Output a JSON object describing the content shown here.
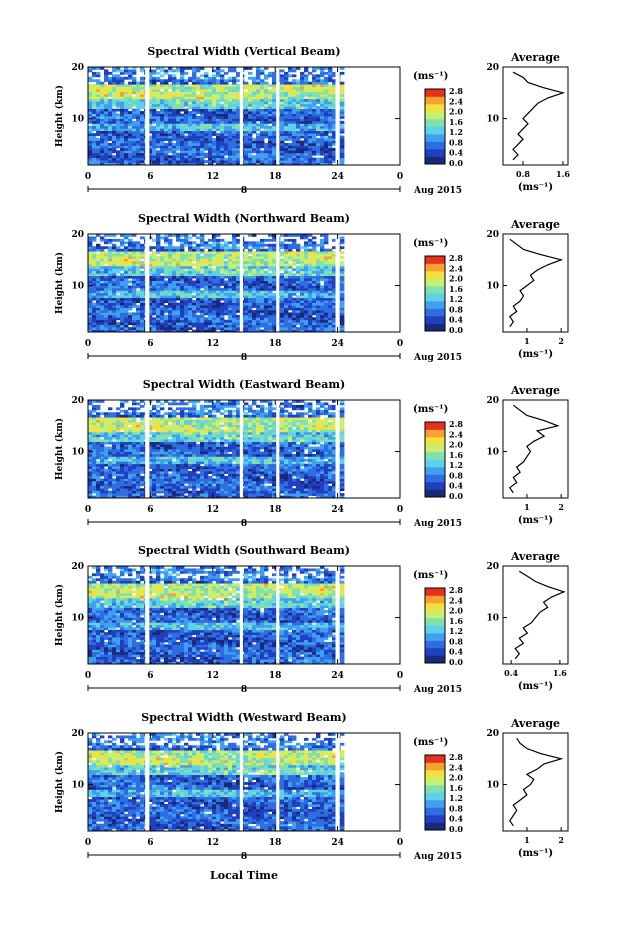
{
  "colorbar": {
    "unit": "(ms⁻¹)",
    "ticks": [
      "0.0",
      "0.4",
      "0.8",
      "1.2",
      "1.6",
      "2.0",
      "2.4",
      "2.8"
    ],
    "colors": [
      "#1a2a7a",
      "#2040c0",
      "#2f6ee0",
      "#3fa0f0",
      "#5ed0e8",
      "#7fe0b0",
      "#c8f070",
      "#f0e040",
      "#f8a030",
      "#e83020"
    ]
  },
  "date_label": "Aug 2015",
  "day_marker": "8",
  "xlabel": "Local Time",
  "chart_data": [
    {
      "type": "heatmap",
      "title": "Spectral Width (Vertical Beam)",
      "ylabel": "Height (km)",
      "x_ticks": [
        "0",
        "6",
        "12",
        "18",
        "24",
        "0"
      ],
      "y_ticks": [
        "10",
        "20"
      ],
      "xlim": [
        0,
        30
      ],
      "ylim": [
        1,
        20
      ],
      "gaps_hours": [
        [
          5.5,
          5.9
        ],
        [
          14.6,
          14.9
        ],
        [
          18.1,
          18.4
        ],
        [
          23.8,
          24.2
        ]
      ],
      "profile": {
        "title": "Average",
        "xlabel": "(ms⁻¹)",
        "x_ticks": [
          "0.8",
          "1.6"
        ],
        "xlim": [
          0.4,
          1.7
        ],
        "heights_km": [
          2,
          3,
          4,
          5,
          6,
          7,
          8,
          9,
          10,
          11,
          12,
          13,
          14,
          15,
          16,
          17,
          18,
          19
        ],
        "values": [
          0.6,
          0.7,
          0.6,
          0.7,
          0.8,
          0.7,
          0.8,
          0.9,
          0.8,
          0.9,
          1.0,
          1.1,
          1.3,
          1.6,
          1.2,
          0.9,
          0.8,
          0.6
        ]
      }
    },
    {
      "type": "heatmap",
      "title": "Spectral Width (Northward Beam)",
      "ylabel": "Height (km)",
      "x_ticks": [
        "0",
        "6",
        "12",
        "18",
        "24",
        "0"
      ],
      "y_ticks": [
        "10",
        "20"
      ],
      "xlim": [
        0,
        30
      ],
      "ylim": [
        1,
        20
      ],
      "gaps_hours": [
        [
          5.5,
          5.9
        ],
        [
          14.6,
          14.9
        ],
        [
          18.1,
          18.4
        ],
        [
          23.8,
          24.2
        ]
      ],
      "profile": {
        "title": "Average",
        "xlabel": "(ms⁻¹)",
        "x_ticks": [
          "1",
          "2"
        ],
        "xlim": [
          0.3,
          2.2
        ],
        "heights_km": [
          2,
          3,
          4,
          5,
          6,
          7,
          8,
          9,
          10,
          11,
          12,
          13,
          14,
          15,
          16,
          17,
          18,
          19
        ],
        "values": [
          0.5,
          0.6,
          0.5,
          0.7,
          0.6,
          0.8,
          0.9,
          0.8,
          1.0,
          1.2,
          1.1,
          1.3,
          1.6,
          2.0,
          1.4,
          0.9,
          0.7,
          0.5
        ]
      }
    },
    {
      "type": "heatmap",
      "title": "Spectral Width (Eastward Beam)",
      "ylabel": "Height (km)",
      "x_ticks": [
        "0",
        "6",
        "12",
        "18",
        "24",
        "0"
      ],
      "y_ticks": [
        "10",
        "20"
      ],
      "xlim": [
        0,
        30
      ],
      "ylim": [
        1,
        20
      ],
      "gaps_hours": [
        [
          5.5,
          5.9
        ],
        [
          14.6,
          14.9
        ],
        [
          18.1,
          18.4
        ],
        [
          23.8,
          24.2
        ]
      ],
      "profile": {
        "title": "Average",
        "xlabel": "(ms⁻¹)",
        "x_ticks": [
          "1",
          "2"
        ],
        "xlim": [
          0.3,
          2.2
        ],
        "heights_km": [
          2,
          3,
          4,
          5,
          6,
          7,
          8,
          9,
          10,
          11,
          12,
          13,
          14,
          15,
          16,
          17,
          18,
          19
        ],
        "values": [
          0.6,
          0.5,
          0.7,
          0.6,
          0.8,
          0.7,
          0.9,
          1.0,
          1.1,
          1.0,
          1.2,
          1.5,
          1.3,
          1.9,
          1.5,
          1.0,
          0.8,
          0.6
        ]
      }
    },
    {
      "type": "heatmap",
      "title": "Spectral Width (Southward Beam)",
      "ylabel": "Height (km)",
      "x_ticks": [
        "0",
        "6",
        "12",
        "18",
        "24",
        "0"
      ],
      "y_ticks": [
        "10",
        "20"
      ],
      "xlim": [
        0,
        30
      ],
      "ylim": [
        1,
        20
      ],
      "gaps_hours": [
        [
          5.5,
          5.9
        ],
        [
          14.6,
          14.9
        ],
        [
          18.1,
          18.4
        ],
        [
          23.8,
          24.2
        ]
      ],
      "profile": {
        "title": "Average",
        "xlabel": "(ms⁻¹)",
        "x_ticks": [
          "0.4",
          "1.6"
        ],
        "xlim": [
          0.2,
          1.8
        ],
        "heights_km": [
          2,
          3,
          4,
          5,
          6,
          7,
          8,
          9,
          10,
          11,
          12,
          13,
          14,
          15,
          16,
          17,
          18,
          19
        ],
        "values": [
          0.5,
          0.6,
          0.5,
          0.7,
          0.6,
          0.8,
          0.7,
          0.9,
          1.0,
          1.1,
          1.3,
          1.2,
          1.4,
          1.7,
          1.3,
          1.0,
          0.8,
          0.6
        ]
      }
    },
    {
      "type": "heatmap",
      "title": "Spectral Width (Westward Beam)",
      "ylabel": "Height (km)",
      "x_ticks": [
        "0",
        "6",
        "12",
        "18",
        "24",
        "0"
      ],
      "y_ticks": [
        "10",
        "20"
      ],
      "xlim": [
        0,
        30
      ],
      "ylim": [
        1,
        20
      ],
      "gaps_hours": [
        [
          5.5,
          5.9
        ],
        [
          14.6,
          14.9
        ],
        [
          18.1,
          18.4
        ],
        [
          23.8,
          24.2
        ]
      ],
      "profile": {
        "title": "Average",
        "xlabel": "(ms⁻¹)",
        "x_ticks": [
          "1",
          "2"
        ],
        "xlim": [
          0.3,
          2.2
        ],
        "heights_km": [
          2,
          3,
          4,
          5,
          6,
          7,
          8,
          9,
          10,
          11,
          12,
          13,
          14,
          15,
          16,
          17,
          18,
          19
        ],
        "values": [
          0.6,
          0.5,
          0.6,
          0.7,
          0.6,
          0.8,
          1.0,
          0.9,
          1.1,
          1.2,
          1.0,
          1.3,
          1.5,
          2.0,
          1.4,
          1.0,
          0.8,
          0.7
        ]
      }
    }
  ]
}
